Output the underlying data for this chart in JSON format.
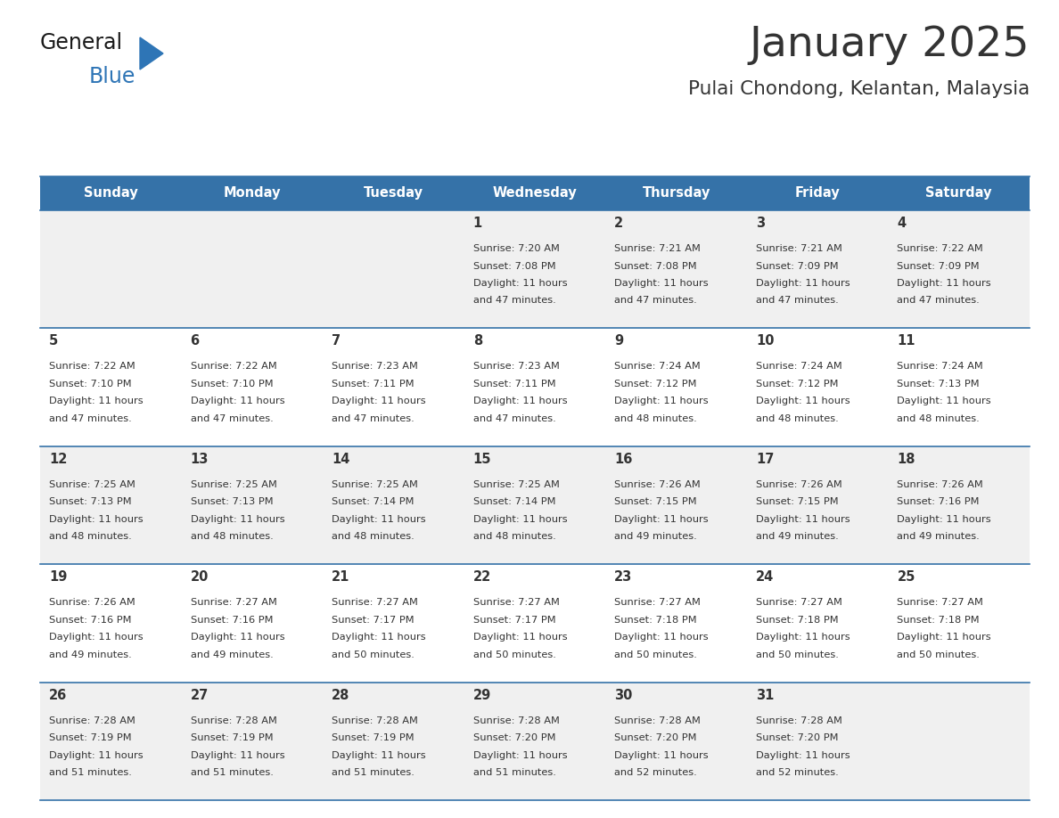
{
  "title": "January 2025",
  "subtitle": "Pulai Chondong, Kelantan, Malaysia",
  "header_color": "#3572a8",
  "header_text_color": "#ffffff",
  "cell_bg_color_odd": "#f0f0f0",
  "cell_bg_color_even": "#ffffff",
  "border_color": "#3572a8",
  "text_color": "#333333",
  "logo_general_color": "#1a1a1a",
  "logo_blue_color": "#2e75b6",
  "logo_triangle_color": "#2e75b6",
  "days_of_week": [
    "Sunday",
    "Monday",
    "Tuesday",
    "Wednesday",
    "Thursday",
    "Friday",
    "Saturday"
  ],
  "calendar_data": [
    [
      {
        "day": "",
        "sunrise": "",
        "sunset": "",
        "daylight": ""
      },
      {
        "day": "",
        "sunrise": "",
        "sunset": "",
        "daylight": ""
      },
      {
        "day": "",
        "sunrise": "",
        "sunset": "",
        "daylight": ""
      },
      {
        "day": "1",
        "sunrise": "7:20 AM",
        "sunset": "7:08 PM",
        "daylight": "11 hours and 47 minutes."
      },
      {
        "day": "2",
        "sunrise": "7:21 AM",
        "sunset": "7:08 PM",
        "daylight": "11 hours and 47 minutes."
      },
      {
        "day": "3",
        "sunrise": "7:21 AM",
        "sunset": "7:09 PM",
        "daylight": "11 hours and 47 minutes."
      },
      {
        "day": "4",
        "sunrise": "7:22 AM",
        "sunset": "7:09 PM",
        "daylight": "11 hours and 47 minutes."
      }
    ],
    [
      {
        "day": "5",
        "sunrise": "7:22 AM",
        "sunset": "7:10 PM",
        "daylight": "11 hours and 47 minutes."
      },
      {
        "day": "6",
        "sunrise": "7:22 AM",
        "sunset": "7:10 PM",
        "daylight": "11 hours and 47 minutes."
      },
      {
        "day": "7",
        "sunrise": "7:23 AM",
        "sunset": "7:11 PM",
        "daylight": "11 hours and 47 minutes."
      },
      {
        "day": "8",
        "sunrise": "7:23 AM",
        "sunset": "7:11 PM",
        "daylight": "11 hours and 47 minutes."
      },
      {
        "day": "9",
        "sunrise": "7:24 AM",
        "sunset": "7:12 PM",
        "daylight": "11 hours and 48 minutes."
      },
      {
        "day": "10",
        "sunrise": "7:24 AM",
        "sunset": "7:12 PM",
        "daylight": "11 hours and 48 minutes."
      },
      {
        "day": "11",
        "sunrise": "7:24 AM",
        "sunset": "7:13 PM",
        "daylight": "11 hours and 48 minutes."
      }
    ],
    [
      {
        "day": "12",
        "sunrise": "7:25 AM",
        "sunset": "7:13 PM",
        "daylight": "11 hours and 48 minutes."
      },
      {
        "day": "13",
        "sunrise": "7:25 AM",
        "sunset": "7:13 PM",
        "daylight": "11 hours and 48 minutes."
      },
      {
        "day": "14",
        "sunrise": "7:25 AM",
        "sunset": "7:14 PM",
        "daylight": "11 hours and 48 minutes."
      },
      {
        "day": "15",
        "sunrise": "7:25 AM",
        "sunset": "7:14 PM",
        "daylight": "11 hours and 48 minutes."
      },
      {
        "day": "16",
        "sunrise": "7:26 AM",
        "sunset": "7:15 PM",
        "daylight": "11 hours and 49 minutes."
      },
      {
        "day": "17",
        "sunrise": "7:26 AM",
        "sunset": "7:15 PM",
        "daylight": "11 hours and 49 minutes."
      },
      {
        "day": "18",
        "sunrise": "7:26 AM",
        "sunset": "7:16 PM",
        "daylight": "11 hours and 49 minutes."
      }
    ],
    [
      {
        "day": "19",
        "sunrise": "7:26 AM",
        "sunset": "7:16 PM",
        "daylight": "11 hours and 49 minutes."
      },
      {
        "day": "20",
        "sunrise": "7:27 AM",
        "sunset": "7:16 PM",
        "daylight": "11 hours and 49 minutes."
      },
      {
        "day": "21",
        "sunrise": "7:27 AM",
        "sunset": "7:17 PM",
        "daylight": "11 hours and 50 minutes."
      },
      {
        "day": "22",
        "sunrise": "7:27 AM",
        "sunset": "7:17 PM",
        "daylight": "11 hours and 50 minutes."
      },
      {
        "day": "23",
        "sunrise": "7:27 AM",
        "sunset": "7:18 PM",
        "daylight": "11 hours and 50 minutes."
      },
      {
        "day": "24",
        "sunrise": "7:27 AM",
        "sunset": "7:18 PM",
        "daylight": "11 hours and 50 minutes."
      },
      {
        "day": "25",
        "sunrise": "7:27 AM",
        "sunset": "7:18 PM",
        "daylight": "11 hours and 50 minutes."
      }
    ],
    [
      {
        "day": "26",
        "sunrise": "7:28 AM",
        "sunset": "7:19 PM",
        "daylight": "11 hours and 51 minutes."
      },
      {
        "day": "27",
        "sunrise": "7:28 AM",
        "sunset": "7:19 PM",
        "daylight": "11 hours and 51 minutes."
      },
      {
        "day": "28",
        "sunrise": "7:28 AM",
        "sunset": "7:19 PM",
        "daylight": "11 hours and 51 minutes."
      },
      {
        "day": "29",
        "sunrise": "7:28 AM",
        "sunset": "7:20 PM",
        "daylight": "11 hours and 51 minutes."
      },
      {
        "day": "30",
        "sunrise": "7:28 AM",
        "sunset": "7:20 PM",
        "daylight": "11 hours and 52 minutes."
      },
      {
        "day": "31",
        "sunrise": "7:28 AM",
        "sunset": "7:20 PM",
        "daylight": "11 hours and 52 minutes."
      },
      {
        "day": "",
        "sunrise": "",
        "sunset": "",
        "daylight": ""
      }
    ]
  ]
}
